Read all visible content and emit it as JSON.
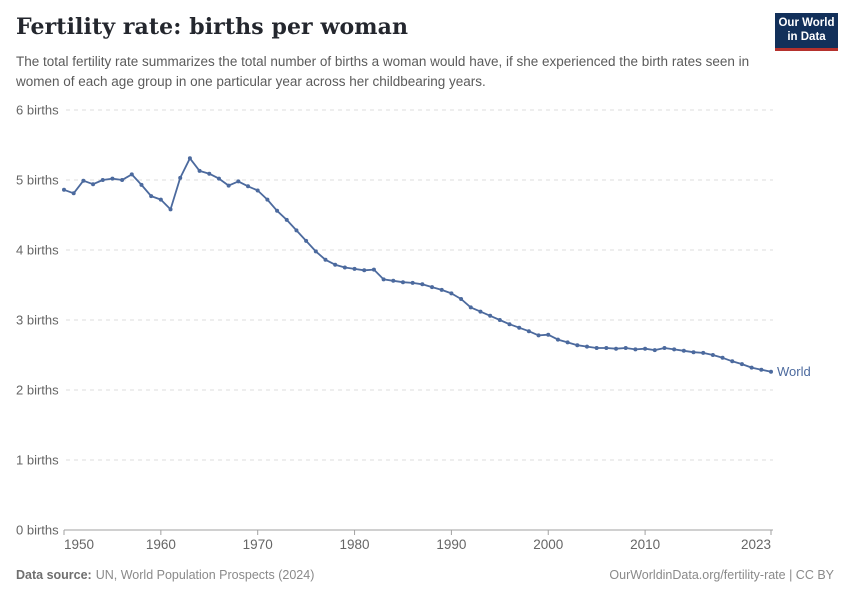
{
  "header": {
    "title": "Fertility rate: births per woman",
    "subtitle": "The total fertility rate summarizes the total number of births a woman would have, if she experienced the birth rates seen in women of each age group in one particular year across her childbearing years."
  },
  "logo": {
    "line1": "Our World",
    "line2": "in Data",
    "bg_color": "#12305a",
    "accent_color": "#b5312d"
  },
  "chart_data": {
    "type": "line",
    "title": "Fertility rate: births per woman",
    "xlabel": "",
    "ylabel": "births per woman",
    "xlim": [
      1950,
      2023
    ],
    "ylim": [
      0,
      6
    ],
    "x_ticks": [
      1950,
      1960,
      1970,
      1980,
      1990,
      2000,
      2010,
      2023
    ],
    "y_ticks": [
      0,
      1,
      2,
      3,
      4,
      5,
      6
    ],
    "y_tick_suffix": " births",
    "grid": "horizontal-dashed",
    "series": [
      {
        "name": "World",
        "color": "#4c6a9e",
        "x": [
          1950,
          1951,
          1952,
          1953,
          1954,
          1955,
          1956,
          1957,
          1958,
          1959,
          1960,
          1961,
          1962,
          1963,
          1964,
          1965,
          1966,
          1967,
          1968,
          1969,
          1970,
          1971,
          1972,
          1973,
          1974,
          1975,
          1976,
          1977,
          1978,
          1979,
          1980,
          1981,
          1982,
          1983,
          1984,
          1985,
          1986,
          1987,
          1988,
          1989,
          1990,
          1991,
          1992,
          1993,
          1994,
          1995,
          1996,
          1997,
          1998,
          1999,
          2000,
          2001,
          2002,
          2003,
          2004,
          2005,
          2006,
          2007,
          2008,
          2009,
          2010,
          2011,
          2012,
          2013,
          2014,
          2015,
          2016,
          2017,
          2018,
          2019,
          2020,
          2021,
          2022,
          2023
        ],
        "values": [
          4.86,
          4.81,
          4.99,
          4.94,
          5.0,
          5.02,
          5.0,
          5.08,
          4.93,
          4.77,
          4.72,
          4.58,
          5.03,
          5.31,
          5.13,
          5.09,
          5.02,
          4.92,
          4.98,
          4.91,
          4.85,
          4.72,
          4.56,
          4.43,
          4.28,
          4.13,
          3.98,
          3.86,
          3.79,
          3.75,
          3.73,
          3.71,
          3.72,
          3.58,
          3.56,
          3.54,
          3.53,
          3.51,
          3.47,
          3.43,
          3.38,
          3.3,
          3.18,
          3.12,
          3.06,
          3.0,
          2.94,
          2.89,
          2.84,
          2.78,
          2.79,
          2.72,
          2.68,
          2.64,
          2.62,
          2.6,
          2.6,
          2.59,
          2.6,
          2.58,
          2.59,
          2.57,
          2.6,
          2.58,
          2.56,
          2.54,
          2.53,
          2.5,
          2.46,
          2.41,
          2.37,
          2.32,
          2.29,
          2.26
        ]
      }
    ],
    "colors": {
      "grid": "#dcdcdc",
      "axis": "#a1a1a1",
      "tick_label": "#666666",
      "line": "#4c6a9e"
    }
  },
  "footer": {
    "datasource_label": "Data source:",
    "datasource_value": "UN, World Population Prospects (2024)",
    "attribution": "OurWorldinData.org/fertility-rate | CC BY"
  }
}
